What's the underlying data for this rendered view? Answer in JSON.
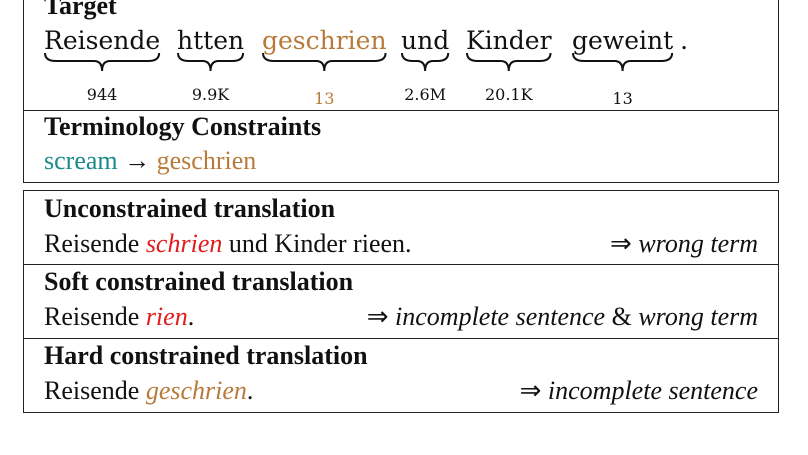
{
  "target": {
    "heading": "Target",
    "words": [
      {
        "text": "Reisende",
        "count": "944",
        "color": "#111111"
      },
      {
        "text": "htten",
        "count": "9.9K",
        "color": "#111111"
      },
      {
        "text": "geschrien",
        "count": "13",
        "color": "#b87a3a"
      },
      {
        "text": "und",
        "count": "2.6M",
        "color": "#111111"
      },
      {
        "text": "Kinder",
        "count": "20.1K",
        "color": "#111111"
      },
      {
        "text": "geweint",
        "count": "13",
        "color": "#111111"
      }
    ],
    "period": "."
  },
  "terminology": {
    "heading": "Terminology Constraints",
    "source_term": "scream",
    "arrow": "→",
    "target_term": "geschrien",
    "source_color": "#1a8a8a",
    "target_color": "#b87a3a"
  },
  "translations": [
    {
      "heading": "Unconstrained translation",
      "prefix": "Reisende ",
      "term": "schrien",
      "term_color": "#e21b1b",
      "suffix": " und Kinder rieen.",
      "arrow": "⇒",
      "verdict": "wrong term"
    },
    {
      "heading": "Soft constrained translation",
      "prefix": "Reisende ",
      "term": "rien",
      "term_color": "#e21b1b",
      "suffix": ".",
      "arrow": "⇒",
      "verdict_part1": "incomplete sentence",
      "conjunction": "&",
      "verdict_part2": "wrong term"
    },
    {
      "heading": "Hard constrained translation",
      "prefix": "Reisende ",
      "term": "geschrien",
      "term_color": "#b87a3a",
      "suffix": ".",
      "arrow": "⇒",
      "verdict": "incomplete sentence"
    }
  ]
}
